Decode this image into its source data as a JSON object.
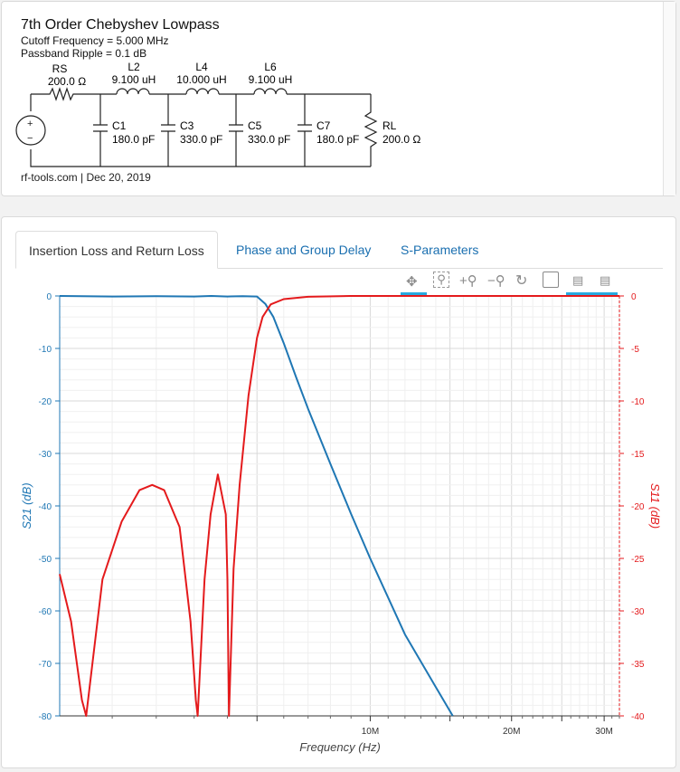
{
  "schematic": {
    "title": "7th Order Chebyshev Lowpass",
    "cutoff": "Cutoff Frequency = 5.000 MHz",
    "ripple": "Passband Ripple = 0.1 dB",
    "footer": "rf-tools.com | Dec 20, 2019",
    "source": {
      "label": "RS",
      "value": "200.0 Ω",
      "plus": "+",
      "minus": "−"
    },
    "inductors": [
      {
        "label": "L2",
        "value": "9.100 uH"
      },
      {
        "label": "L4",
        "value": "10.000 uH"
      },
      {
        "label": "L6",
        "value": "9.100 uH"
      }
    ],
    "capacitors": [
      {
        "label": "C1",
        "value": "180.0 pF"
      },
      {
        "label": "C3",
        "value": "330.0 pF"
      },
      {
        "label": "C5",
        "value": "330.0 pF"
      },
      {
        "label": "C7",
        "value": "180.0 pF"
      }
    ],
    "load": {
      "label": "RL",
      "value": "200.0 Ω"
    }
  },
  "tabs": [
    {
      "label": "Insertion Loss and Return Loss",
      "active": true
    },
    {
      "label": "Phase and Group Delay",
      "active": false
    },
    {
      "label": "S-Parameters",
      "active": false
    }
  ],
  "toolbar": [
    "pan-icon",
    "box-zoom-icon",
    "zoom-in-icon",
    "zoom-out-icon",
    "reset-icon",
    "save-icon",
    "hover-icon-1",
    "hover-icon-2"
  ],
  "colors": {
    "s21": "#1f77b4",
    "s11": "#e41a1c"
  },
  "chart_data": {
    "type": "line",
    "xlabel": "Frequency (Hz)",
    "ylabel_left": "S21 (dB)",
    "ylabel_right": "S11 (dB)",
    "x_scale": "log",
    "xlim": [
      0,
      32000000
    ],
    "x_tick_labels": [
      "10M",
      "20M",
      "30M"
    ],
    "ylim_left": [
      -80,
      0
    ],
    "ylim_right": [
      -40,
      0
    ],
    "left_ticks": [
      "0",
      "-10",
      "-20",
      "-30",
      "-40",
      "-50",
      "-60",
      "-70",
      "-80"
    ],
    "right_ticks": [
      "0",
      "-5",
      "-10",
      "-15",
      "-20",
      "-25",
      "-30",
      "-35",
      "-40"
    ],
    "grid": true,
    "series": [
      {
        "name": "S21 (dB)",
        "axis": "left",
        "color": "#1f77b4",
        "x": [
          0,
          1000000,
          2000000,
          3000000,
          3500000,
          4000000,
          4500000,
          5000000,
          5300000,
          5600000,
          6000000,
          6500000,
          7000000,
          8000000,
          9000000,
          10000000,
          12000000,
          14000000,
          15200000
        ],
        "y": [
          0,
          -0.1,
          -0.05,
          -0.1,
          0,
          -0.1,
          -0.05,
          -0.1,
          -1.5,
          -4,
          -9,
          -15.5,
          -21.5,
          -32,
          -41.5,
          -50,
          -64.5,
          -74.5,
          -80
        ]
      },
      {
        "name": "S11 (dB)",
        "axis": "right",
        "color": "#e41a1c",
        "x": [
          0,
          200000,
          400000,
          480000,
          800000,
          1200000,
          1600000,
          1900000,
          2200000,
          2600000,
          2900000,
          3050000,
          3100000,
          3300000,
          3480000,
          3700000,
          3950000,
          4000000,
          4050000,
          4200000,
          4400000,
          4700000,
          5000000,
          5200000,
          5500000,
          6000000,
          7000000,
          9000000,
          32000000
        ],
        "y": [
          -26.5,
          -31,
          -38.5,
          -40,
          -27,
          -21.5,
          -18.5,
          -18,
          -18.5,
          -22,
          -31,
          -38.5,
          -40,
          -27,
          -20.8,
          -17,
          -20.8,
          -27,
          -40,
          -26,
          -18,
          -9.5,
          -4,
          -2,
          -0.8,
          -0.3,
          -0.08,
          0,
          0
        ]
      }
    ]
  }
}
